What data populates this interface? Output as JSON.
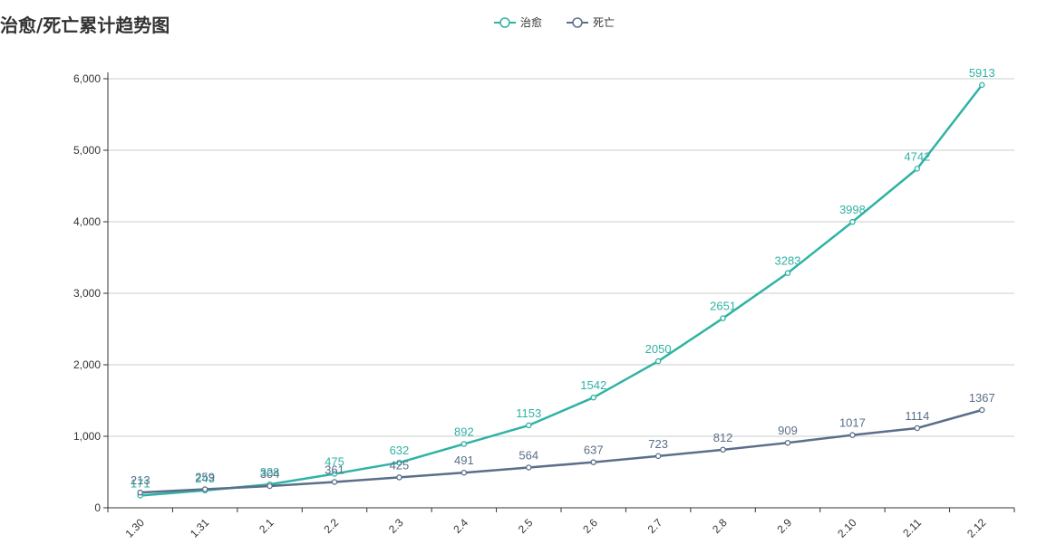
{
  "header": {
    "title": "治愈/死亡累计趋势图"
  },
  "chart_data": {
    "type": "line",
    "title": "治愈/死亡累计趋势图",
    "xlabel": "",
    "ylabel": "",
    "ylim": [
      0,
      6000
    ],
    "yticks": [
      0,
      1000,
      2000,
      3000,
      4000,
      5000,
      6000
    ],
    "ytick_labels": [
      "0",
      "1,000",
      "2,000",
      "3,000",
      "4,000",
      "5,000",
      "6,000"
    ],
    "categories": [
      "1.30",
      "1.31",
      "2.1",
      "2.2",
      "2.3",
      "2.4",
      "2.5",
      "2.6",
      "2.7",
      "2.8",
      "2.9",
      "2.10",
      "2.11",
      "2.12"
    ],
    "grid": true,
    "legend_position": "top-center",
    "series": [
      {
        "name": "治愈",
        "color": "#2fb3a4",
        "values": [
          171,
          243,
          328,
          475,
          632,
          892,
          1153,
          1542,
          2050,
          2651,
          3283,
          3998,
          4742,
          5913
        ]
      },
      {
        "name": "死亡",
        "color": "#5b6e8a",
        "values": [
          213,
          259,
          304,
          361,
          425,
          491,
          564,
          637,
          723,
          812,
          909,
          1017,
          1114,
          1367
        ]
      }
    ]
  }
}
